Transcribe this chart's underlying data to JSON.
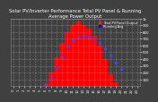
{
  "title": "Solar PV/Inverter Performance Total PV Panel & Running Average Power Output",
  "bg_color": "#404040",
  "plot_bg": "#404040",
  "grid_color": "#ffffff",
  "bar_color": "#ff0000",
  "bar_edge": "#ff0000",
  "line_color": "#4444ff",
  "legend_pv_label": "Total PV Panel Output",
  "legend_avg_label": "Running Avg",
  "legend_pv_color": "#ff2200",
  "legend_avg_color": "#0000ff",
  "x_hours": [
    0,
    1,
    2,
    3,
    4,
    5,
    6,
    7,
    8,
    9,
    10,
    11,
    12,
    13,
    14,
    15,
    16,
    17,
    18,
    19,
    20,
    21,
    22,
    23
  ],
  "pv_values": [
    0,
    0,
    0,
    0,
    0,
    5,
    40,
    200,
    420,
    640,
    800,
    900,
    950,
    900,
    850,
    750,
    600,
    400,
    180,
    50,
    5,
    0,
    0,
    0
  ],
  "avg_values": [
    null,
    null,
    null,
    null,
    null,
    null,
    30,
    120,
    280,
    440,
    580,
    680,
    730,
    740,
    730,
    700,
    640,
    560,
    450,
    350,
    250,
    null,
    null,
    null
  ],
  "ylim": [
    0,
    1000
  ],
  "ytick_values": [
    100,
    200,
    300,
    400,
    500,
    600,
    700,
    800,
    900,
    1000
  ],
  "ytick_labels": [
    "100",
    "200",
    "300",
    "400",
    "500",
    "600",
    "700",
    "800",
    "900",
    "1k"
  ],
  "title_fontsize": 3.8,
  "tick_fontsize": 2.8,
  "legend_fontsize": 2.5
}
